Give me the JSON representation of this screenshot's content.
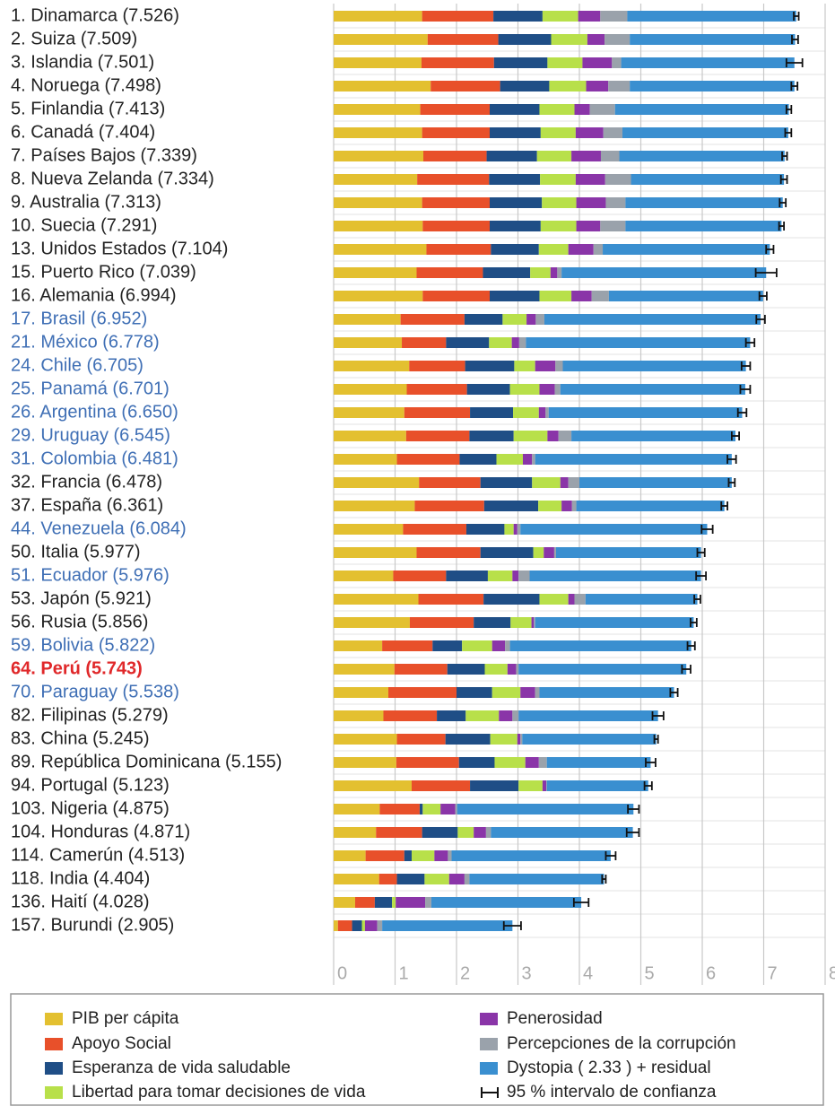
{
  "chart_data": {
    "type": "stacked-bar-horizontal",
    "categories": [
      "1. Dinamarca (7.526)",
      "2. Suiza (7.509)",
      "3. Islandia (7.501)",
      "4. Noruega (7.498)",
      "5. Finlandia (7.413)",
      "6. Canadá (7.404)",
      "7. Países Bajos (7.339)",
      "8. Nueva Zelanda (7.334)",
      "9. Australia (7.313)",
      "10. Suecia (7.291)",
      "13. Unidos Estados (7.104)",
      "15. Puerto Rico (7.039)",
      "16. Alemania (6.994)",
      "17. Brasil (6.952)",
      "21. México (6.778)",
      "24. Chile (6.705)",
      "25. Panamá (6.701)",
      "26. Argentina (6.650)",
      "29. Uruguay (6.545)",
      "31. Colombia (6.481)",
      "32. Francia (6.478)",
      "37. España (6.361)",
      "44. Venezuela (6.084)",
      "50. Italia (5.977)",
      "51. Ecuador (5.976)",
      "53. Japón (5.921)",
      "56. Rusia (5.856)",
      "59. Bolivia (5.822)",
      "64. Perú (5.743)",
      "70. Paraguay (5.538)",
      "82. Filipinas (5.279)",
      "83. China (5.245)",
      "89. República Dominicana (5.155)",
      "94. Portugal (5.123)",
      "103. Nigeria (4.875)",
      "104. Honduras (4.871)",
      "114. Camerún (4.513)",
      "118. India (4.404)",
      "136. Haití (4.028)",
      "157. Burundi (2.905)"
    ],
    "category_colors": [
      "#222",
      "#222",
      "#222",
      "#222",
      "#222",
      "#222",
      "#222",
      "#222",
      "#222",
      "#222",
      "#222",
      "#222",
      "#222",
      "#3f6fb5",
      "#3f6fb5",
      "#3f6fb5",
      "#3f6fb5",
      "#3f6fb5",
      "#3f6fb5",
      "#3f6fb5",
      "#222",
      "#222",
      "#3f6fb5",
      "#222",
      "#3f6fb5",
      "#222",
      "#222",
      "#3f6fb5",
      "#e0282a",
      "#3f6fb5",
      "#222",
      "#222",
      "#222",
      "#222",
      "#222",
      "#222",
      "#222",
      "#222",
      "#222",
      "#222"
    ],
    "series": [
      {
        "name": "PIB per cápita",
        "color": "#e3c030",
        "values": [
          1.44,
          1.53,
          1.43,
          1.58,
          1.41,
          1.44,
          1.46,
          1.36,
          1.44,
          1.45,
          1.51,
          1.35,
          1.45,
          1.09,
          1.11,
          1.23,
          1.19,
          1.15,
          1.18,
          1.03,
          1.39,
          1.32,
          1.13,
          1.35,
          0.97,
          1.38,
          1.24,
          0.79,
          0.99,
          0.89,
          0.81,
          1.03,
          1.02,
          1.27,
          0.75,
          0.69,
          0.52,
          0.74,
          0.35,
          0.07
        ]
      },
      {
        "name": "Apoyo Social",
        "color": "#e8502a",
        "values": [
          1.16,
          1.15,
          1.18,
          1.13,
          1.13,
          1.1,
          1.03,
          1.17,
          1.1,
          1.09,
          1.05,
          1.08,
          1.09,
          1.04,
          0.72,
          0.91,
          0.98,
          1.07,
          1.03,
          1.02,
          1.0,
          1.13,
          1.03,
          1.04,
          0.86,
          1.06,
          1.04,
          0.82,
          0.86,
          1.11,
          0.87,
          0.79,
          1.02,
          0.95,
          0.65,
          0.75,
          0.63,
          0.29,
          0.32,
          0.23
        ]
      },
      {
        "name": "Esperanza de vida saludable",
        "color": "#1f4e86",
        "values": [
          0.8,
          0.86,
          0.87,
          0.8,
          0.81,
          0.83,
          0.82,
          0.83,
          0.85,
          0.83,
          0.78,
          0.77,
          0.81,
          0.62,
          0.7,
          0.8,
          0.7,
          0.7,
          0.72,
          0.6,
          0.84,
          0.88,
          0.62,
          0.86,
          0.68,
          0.91,
          0.6,
          0.48,
          0.61,
          0.58,
          0.47,
          0.73,
          0.58,
          0.79,
          0.05,
          0.58,
          0.12,
          0.45,
          0.28,
          0.16
        ]
      },
      {
        "name": "Libertad para tomar decisiones de vida",
        "color": "#b8e04a",
        "values": [
          0.58,
          0.59,
          0.57,
          0.6,
          0.57,
          0.57,
          0.56,
          0.58,
          0.56,
          0.58,
          0.48,
          0.33,
          0.52,
          0.39,
          0.37,
          0.34,
          0.48,
          0.42,
          0.55,
          0.43,
          0.46,
          0.38,
          0.15,
          0.17,
          0.4,
          0.47,
          0.34,
          0.49,
          0.37,
          0.46,
          0.54,
          0.44,
          0.5,
          0.39,
          0.29,
          0.26,
          0.37,
          0.4,
          0.06,
          0.05
        ]
      },
      {
        "name": "Penerosidad",
        "color": "#8a35a8",
        "values": [
          0.36,
          0.28,
          0.48,
          0.36,
          0.25,
          0.45,
          0.48,
          0.48,
          0.48,
          0.39,
          0.41,
          0.11,
          0.33,
          0.15,
          0.12,
          0.33,
          0.25,
          0.11,
          0.18,
          0.15,
          0.13,
          0.17,
          0.06,
          0.17,
          0.1,
          0.1,
          0.04,
          0.21,
          0.14,
          0.24,
          0.22,
          0.05,
          0.22,
          0.06,
          0.24,
          0.2,
          0.22,
          0.25,
          0.48,
          0.2
        ]
      },
      {
        "name": "Percepciones de la corrupción",
        "color": "#9aa2ab",
        "values": [
          0.44,
          0.41,
          0.15,
          0.35,
          0.41,
          0.31,
          0.3,
          0.42,
          0.32,
          0.41,
          0.15,
          0.07,
          0.28,
          0.14,
          0.11,
          0.12,
          0.09,
          0.05,
          0.21,
          0.05,
          0.18,
          0.07,
          0.05,
          0.03,
          0.18,
          0.18,
          0.02,
          0.08,
          0.04,
          0.07,
          0.1,
          0.03,
          0.13,
          0.01,
          0.03,
          0.08,
          0.06,
          0.08,
          0.1,
          0.08
        ]
      },
      {
        "name": "Dystopia ( 2.33 ) + residual",
        "color": "#3a8fd0",
        "values": [
          2.75,
          2.69,
          2.82,
          2.68,
          2.83,
          2.7,
          2.69,
          2.49,
          2.56,
          2.54,
          2.72,
          3.33,
          2.51,
          3.52,
          3.65,
          2.98,
          3.01,
          3.15,
          2.67,
          3.2,
          2.48,
          2.41,
          3.04,
          2.36,
          2.79,
          1.82,
          2.58,
          2.95,
          2.73,
          2.19,
          2.27,
          2.18,
          1.69,
          1.65,
          2.87,
          2.31,
          2.59,
          2.19,
          2.44,
          2.12
        ]
      }
    ],
    "errors": [
      0.04,
      0.05,
      0.13,
      0.05,
      0.04,
      0.05,
      0.04,
      0.05,
      0.05,
      0.04,
      0.06,
      0.17,
      0.06,
      0.07,
      0.07,
      0.07,
      0.08,
      0.07,
      0.06,
      0.07,
      0.05,
      0.05,
      0.09,
      0.06,
      0.08,
      0.05,
      0.05,
      0.06,
      0.07,
      0.06,
      0.09,
      0.03,
      0.08,
      0.06,
      0.09,
      0.1,
      0.08,
      0.03,
      0.12,
      0.14
    ],
    "interval_label": "95 % intervalo de confianza",
    "xlim": [
      0,
      8
    ],
    "xticks": [
      0,
      1,
      2,
      3,
      4,
      5,
      6,
      7,
      8
    ],
    "grid": true,
    "legend": "bottom"
  }
}
